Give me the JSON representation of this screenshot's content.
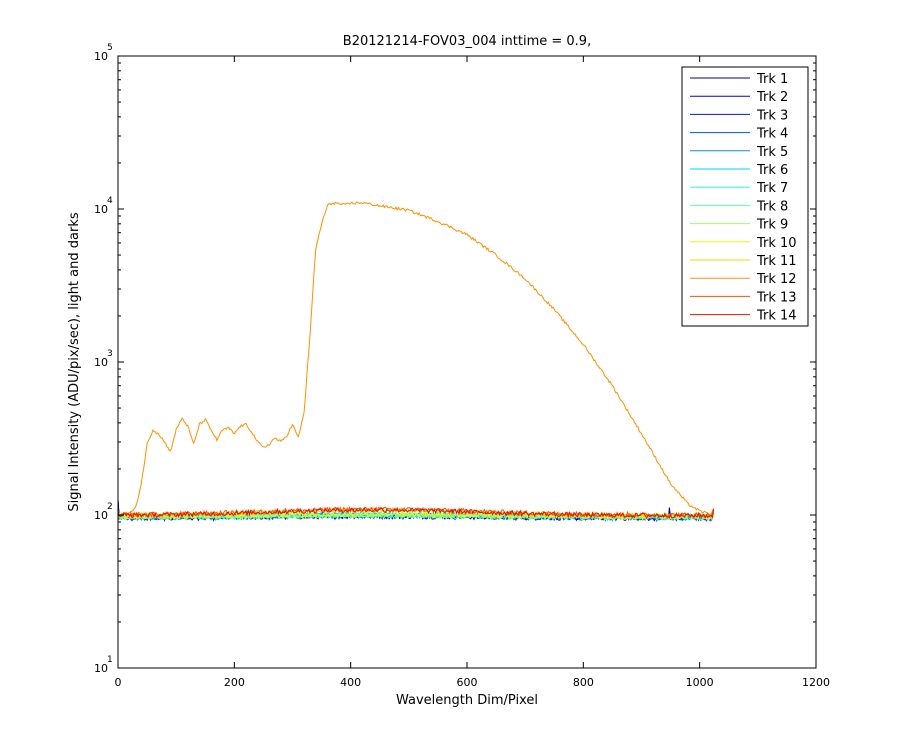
{
  "chart_data": {
    "type": "line",
    "title": "B20121214-FOV03_004 inttime = 0.9,",
    "xlabel": "Wavelength Dim/Pixel",
    "ylabel": "Signal Intensity (ADU/pix/sec), light and darks",
    "xlim": [
      0,
      1200
    ],
    "ylim": [
      10,
      100000
    ],
    "yscale": "log",
    "grid": false,
    "legend_position": "top-right",
    "x_ticks": [
      0,
      200,
      400,
      600,
      800,
      1000,
      1200
    ],
    "x_tick_labels": [
      "0",
      "200",
      "400",
      "600",
      "800",
      "1000",
      "1200"
    ],
    "y_ticks": [
      10,
      100,
      1000,
      10000,
      100000
    ],
    "y_tick_base": [
      "10",
      "10",
      "10",
      "10",
      "10"
    ],
    "y_tick_exp": [
      "1",
      "2",
      "3",
      "4",
      "5"
    ],
    "series": [
      {
        "name": "Trk 1",
        "color": "#00008f",
        "baseline": 96,
        "spike": {
          "x": 948,
          "y": 112
        }
      },
      {
        "name": "Trk 2",
        "color": "#0000cf",
        "baseline": 95
      },
      {
        "name": "Trk 3",
        "color": "#0010ff",
        "baseline": 97
      },
      {
        "name": "Trk 4",
        "color": "#0050ff",
        "baseline": 96
      },
      {
        "name": "Trk 5",
        "color": "#0090ff",
        "baseline": 97
      },
      {
        "name": "Trk 6",
        "color": "#00d0ff",
        "baseline": 98
      },
      {
        "name": "Trk 7",
        "color": "#20ffdf",
        "baseline": 97
      },
      {
        "name": "Trk 8",
        "color": "#60ff9f",
        "baseline": 96
      },
      {
        "name": "Trk 9",
        "color": "#9fff60",
        "baseline": 97
      },
      {
        "name": "Trk 10",
        "color": "#dfff20",
        "baseline": 98
      },
      {
        "name": "Trk 11",
        "color": "#ffd000",
        "baseline": 99
      },
      {
        "name": "Trk 12",
        "color": "#ff9000",
        "hump": 108,
        "points": [
          [
            0,
            100
          ],
          [
            10,
            102
          ],
          [
            20,
            103
          ],
          [
            30,
            110
          ],
          [
            40,
            160
          ],
          [
            50,
            290
          ],
          [
            60,
            360
          ],
          [
            70,
            340
          ],
          [
            80,
            300
          ],
          [
            90,
            260
          ],
          [
            100,
            360
          ],
          [
            110,
            430
          ],
          [
            120,
            380
          ],
          [
            130,
            290
          ],
          [
            140,
            390
          ],
          [
            150,
            420
          ],
          [
            160,
            360
          ],
          [
            170,
            310
          ],
          [
            180,
            360
          ],
          [
            190,
            370
          ],
          [
            200,
            340
          ],
          [
            210,
            380
          ],
          [
            220,
            390
          ],
          [
            230,
            350
          ],
          [
            240,
            300
          ],
          [
            250,
            275
          ],
          [
            260,
            290
          ],
          [
            270,
            320
          ],
          [
            280,
            300
          ],
          [
            290,
            330
          ],
          [
            300,
            390
          ],
          [
            310,
            320
          ],
          [
            320,
            470
          ],
          [
            330,
            1500
          ],
          [
            340,
            5500
          ],
          [
            350,
            8000
          ],
          [
            360,
            10500
          ],
          [
            370,
            11000
          ],
          [
            380,
            10800
          ],
          [
            390,
            10600
          ],
          [
            400,
            10900
          ],
          [
            420,
            11000
          ],
          [
            450,
            10500
          ],
          [
            500,
            9800
          ],
          [
            550,
            8300
          ],
          [
            600,
            6800
          ],
          [
            650,
            5000
          ],
          [
            700,
            3500
          ],
          [
            750,
            2200
          ],
          [
            800,
            1300
          ],
          [
            850,
            700
          ],
          [
            900,
            340
          ],
          [
            950,
            160
          ],
          [
            980,
            118
          ],
          [
            1000,
            106
          ],
          [
            1020,
            101
          ],
          [
            1024,
            110
          ]
        ]
      },
      {
        "name": "Trk 13",
        "color": "#ff5000",
        "baseline": 100
      },
      {
        "name": "Trk 14",
        "color": "#e01000",
        "baseline": 99
      }
    ]
  }
}
